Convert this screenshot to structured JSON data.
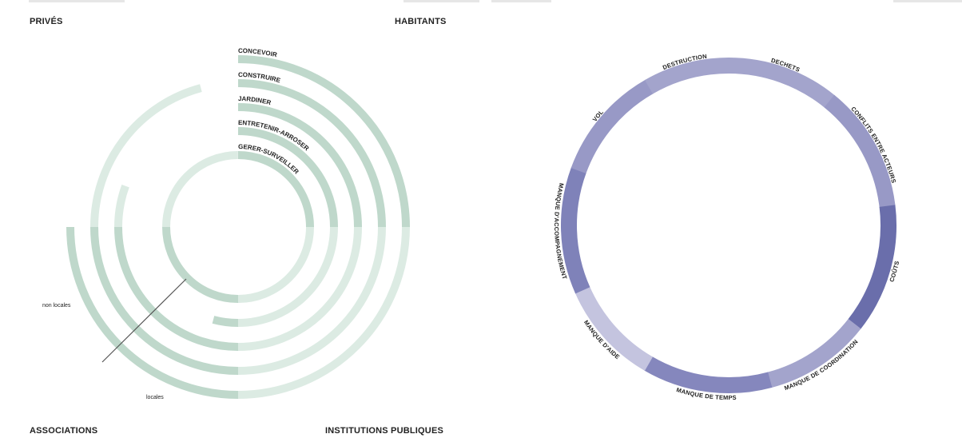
{
  "corners": {
    "top_left": "PRIVÉS",
    "top_right": "HABITANTS",
    "bottom_left": "ASSOCIATIONS",
    "bottom_right": "INSTITUTIONS PUBLIQUES"
  },
  "activities": {
    "rings": [
      {
        "label": "CONCEVOIR",
        "extent_deg": 270
      },
      {
        "label": "CONSTRUIRE",
        "extent_deg": 345
      },
      {
        "label": "JARDINER",
        "extent_deg": 290
      },
      {
        "label": "ENTRETENIR-ARROSER",
        "extent_deg": 195
      },
      {
        "label": "GERER-SURVEILLER",
        "extent_deg": 360
      }
    ],
    "axis_labels": {
      "non_local": "non locales",
      "local": "locales"
    },
    "colors": {
      "dark": "#bfd8cb",
      "light": "#dcebe3",
      "axis": "#555555"
    }
  },
  "obstacles": {
    "segments": [
      {
        "label": "DECHETS",
        "span_deg": 39,
        "color": "#a3a4cc"
      },
      {
        "label": "CONFLITS ENTRE ACTEURS",
        "span_deg": 44,
        "color": "#9899c6"
      },
      {
        "label": "COÛTS",
        "span_deg": 45,
        "color": "#6a6eab"
      },
      {
        "label": "MANQUE DE COORDINATION",
        "span_deg": 37,
        "color": "#a3a4cc"
      },
      {
        "label": "MANQUE DE TEMPS",
        "span_deg": 45,
        "color": "#8587bd"
      },
      {
        "label": "MANQUE D'AIDE",
        "span_deg": 36,
        "color": "#c4c4df"
      },
      {
        "label": "MANQUE D'ACCOMPAGNEMENT",
        "span_deg": 44,
        "color": "#7f82b9"
      },
      {
        "label": "VOL",
        "span_deg": 40,
        "color": "#9899c6"
      },
      {
        "label": "DESTRUCTION",
        "span_deg": 30,
        "color": "#a3a4cc"
      }
    ]
  }
}
